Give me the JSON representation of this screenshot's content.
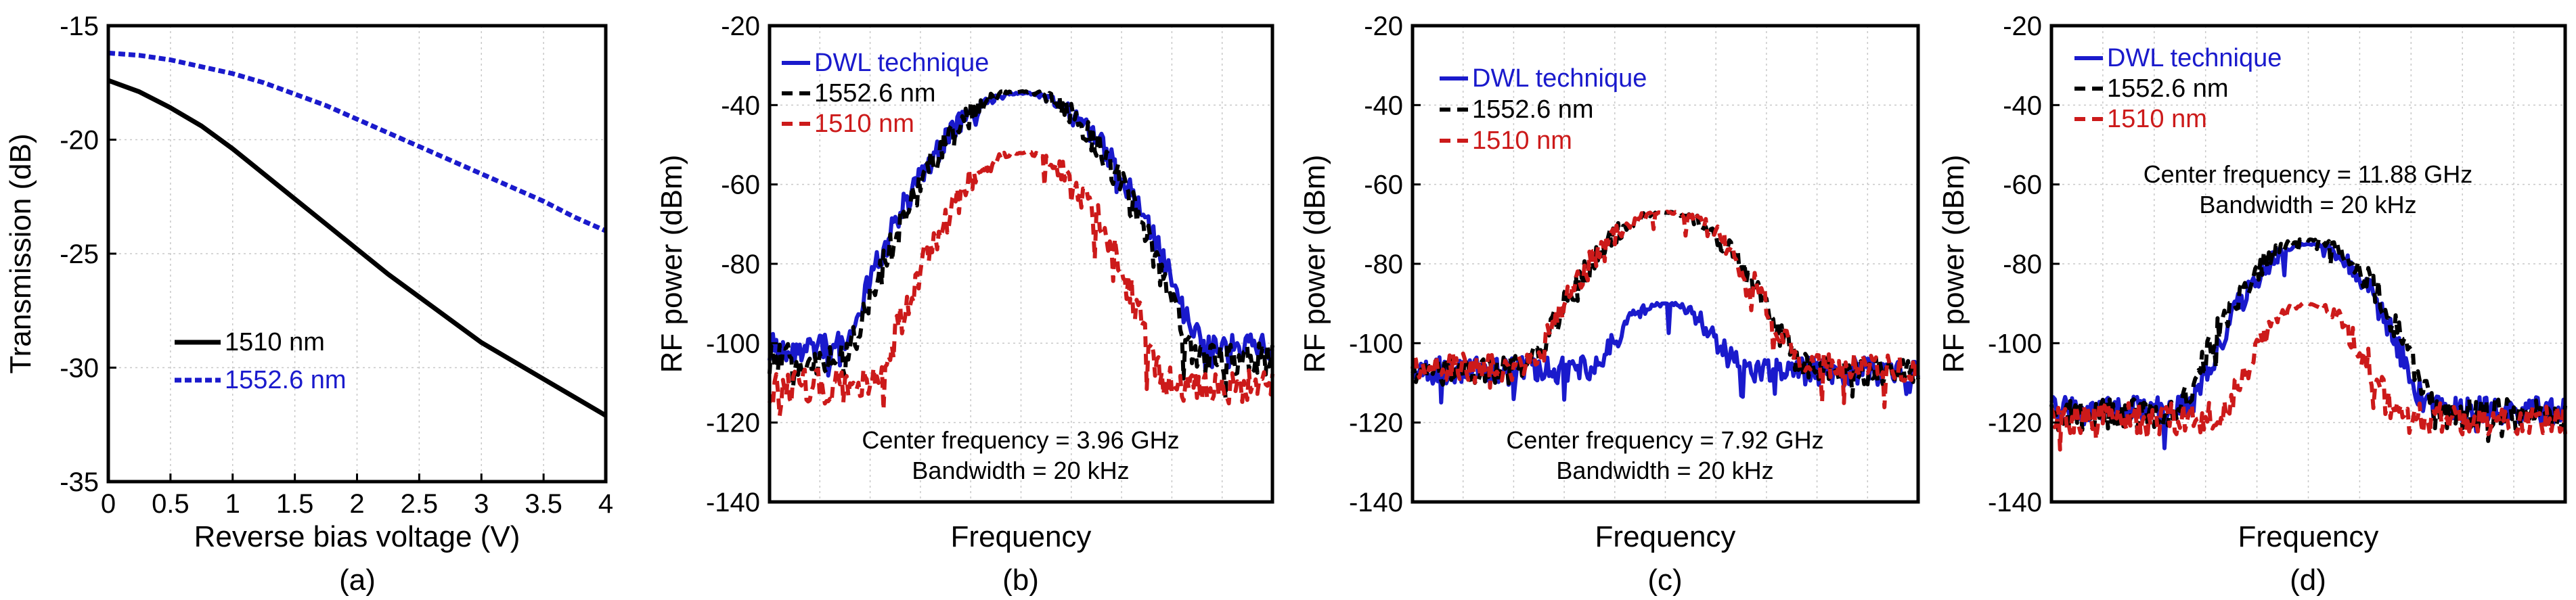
{
  "chart_data": [
    {
      "type": "line",
      "id": "a",
      "caption": "(a)",
      "xlabel": "Reverse bias voltage (V)",
      "ylabel": "Transmission (dB)",
      "xlim": [
        0,
        4
      ],
      "ylim": [
        -35,
        -15
      ],
      "xticks": [
        0,
        0.5,
        1,
        1.5,
        2,
        2.5,
        3,
        3.5,
        4
      ],
      "xtick_labels": [
        "0",
        "0.5",
        "1",
        "1.5",
        "2",
        "2.5",
        "3",
        "3.5",
        "4"
      ],
      "yticks": [
        -35,
        -30,
        -25,
        -20,
        -15
      ],
      "ytick_labels": [
        "-35",
        "-30",
        "-25",
        "-20",
        "-15"
      ],
      "grid": true,
      "legend": "bottom-left",
      "series": [
        {
          "name": "1510 nm",
          "color": "#000000",
          "style": "solid",
          "x": [
            0,
            0.25,
            0.5,
            0.75,
            1,
            1.25,
            1.5,
            1.75,
            2,
            2.25,
            2.5,
            2.75,
            3,
            3.25,
            3.5,
            3.75,
            4
          ],
          "values": [
            -17.4,
            -17.9,
            -18.6,
            -19.4,
            -20.4,
            -21.5,
            -22.6,
            -23.7,
            -24.8,
            -25.9,
            -26.9,
            -27.9,
            -28.9,
            -29.7,
            -30.5,
            -31.3,
            -32.1
          ]
        },
        {
          "name": "1552.6 nm",
          "color": "#1a1acc",
          "style": "dashed",
          "x": [
            0,
            0.25,
            0.5,
            0.75,
            1,
            1.25,
            1.5,
            1.75,
            2,
            2.25,
            2.5,
            2.75,
            3,
            3.25,
            3.5,
            3.75,
            4
          ],
          "values": [
            -16.2,
            -16.3,
            -16.5,
            -16.8,
            -17.1,
            -17.5,
            -18.0,
            -18.5,
            -19.1,
            -19.7,
            -20.3,
            -20.9,
            -21.5,
            -22.1,
            -22.7,
            -23.4,
            -24.0
          ]
        }
      ]
    },
    {
      "type": "line",
      "id": "b",
      "caption": "(b)",
      "xlabel": "Frequency",
      "ylabel": "RF power (dBm)",
      "ylim": [
        -140,
        -20
      ],
      "yticks": [
        -140,
        -120,
        -100,
        -80,
        -60,
        -40,
        -20
      ],
      "ytick_labels": [
        "-140",
        "-120",
        "-100",
        "-80",
        "-60",
        "-40",
        "-20"
      ],
      "grid": true,
      "legend": "top-left",
      "annotations": [
        "Center frequency = 3.96 GHz",
        "Bandwidth = 20 kHz"
      ],
      "series": [
        {
          "name": "DWL technique",
          "color": "#1a1acc",
          "style": "solid",
          "peak": -37,
          "floor": -101,
          "peak_width": 0.095,
          "noise": 3.5
        },
        {
          "name": "1552.6 nm",
          "color": "#000000",
          "style": "dashed",
          "peak": -36.5,
          "floor": -104,
          "peak_width": 0.09,
          "noise": 4
        },
        {
          "name": "1510 nm",
          "color": "#cc1a1a",
          "style": "dashed",
          "peak": -52,
          "floor": -111,
          "peak_width": 0.08,
          "noise": 4.5
        }
      ]
    },
    {
      "type": "line",
      "id": "c",
      "caption": "(c)",
      "xlabel": "Frequency",
      "ylabel": "RF power (dBm)",
      "ylim": [
        -140,
        -20
      ],
      "yticks": [
        -140,
        -120,
        -100,
        -80,
        -60,
        -40,
        -20
      ],
      "ytick_labels": [
        "-140",
        "-120",
        "-100",
        "-80",
        "-60",
        "-40",
        "-20"
      ],
      "grid": true,
      "legend": "top-left",
      "annotations": [
        "Center frequency = 7.92 GHz",
        "Bandwidth = 20 kHz"
      ],
      "series": [
        {
          "name": "DWL technique",
          "color": "#1a1acc",
          "style": "solid",
          "peak": -90,
          "floor": -107,
          "peak_width": 0.07,
          "noise": 3.5
        },
        {
          "name": "1552.6 nm",
          "color": "#000000",
          "style": "dashed",
          "peak": -67,
          "floor": -107,
          "peak_width": 0.09,
          "noise": 3.5
        },
        {
          "name": "1510 nm",
          "color": "#cc1a1a",
          "style": "dashed",
          "peak": -67,
          "floor": -106,
          "peak_width": 0.09,
          "noise": 3.5
        }
      ]
    },
    {
      "type": "line",
      "id": "d",
      "caption": "(d)",
      "xlabel": "Frequency",
      "ylabel": "RF power (dBm)",
      "ylim": [
        -140,
        -20
      ],
      "yticks": [
        -140,
        -120,
        -100,
        -80,
        -60,
        -40,
        -20
      ],
      "ytick_labels": [
        "-140",
        "-120",
        "-100",
        "-80",
        "-60",
        "-40",
        "-20"
      ],
      "grid": true,
      "legend": "top-left",
      "annotations": [
        "Center frequency = 11.88 GHz",
        "Bandwidth = 20 kHz"
      ],
      "series": [
        {
          "name": "DWL technique",
          "color": "#1a1acc",
          "style": "solid",
          "peak": -75,
          "floor": -117,
          "peak_width": 0.075,
          "noise": 3.5
        },
        {
          "name": "1552.6 nm",
          "color": "#000000",
          "style": "dashed",
          "peak": -74,
          "floor": -118,
          "peak_width": 0.08,
          "noise": 4
        },
        {
          "name": "1510 nm",
          "color": "#cc1a1a",
          "style": "dashed",
          "peak": -90,
          "floor": -119,
          "peak_width": 0.065,
          "noise": 4
        }
      ]
    }
  ]
}
